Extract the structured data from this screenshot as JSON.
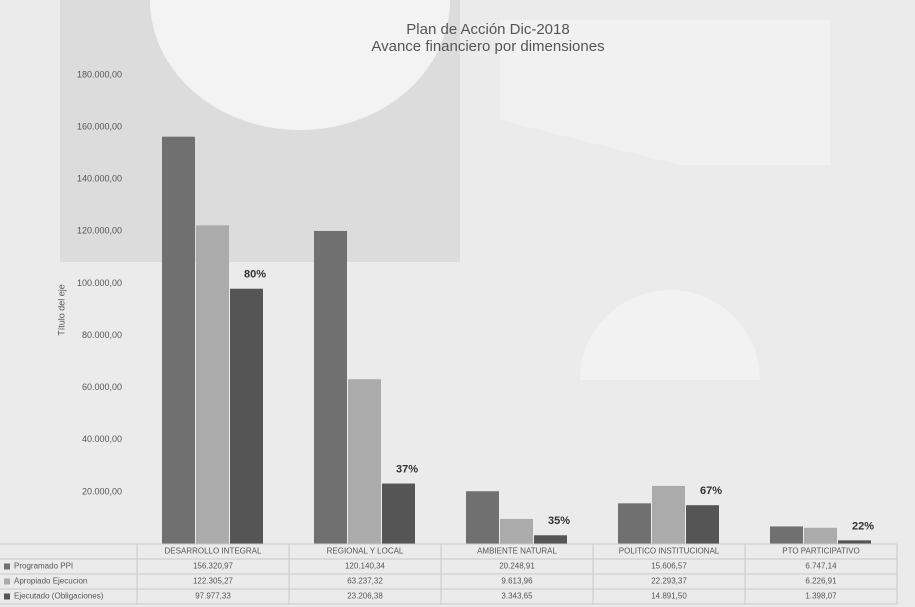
{
  "chart_data": {
    "type": "bar",
    "title": "Plan de Acción Dic-2018",
    "subtitle": "Avance financiero por dimensiones",
    "y_axis_label": "Título del eje",
    "categories": [
      "DESARROLLO INTEGRAL",
      "REGIONAL Y LOCAL",
      "AMBIENTE NATURAL",
      "POLITICO INSTITUCIONAL",
      "PTO PARTICIPATIVO"
    ],
    "series": [
      {
        "name": "Programado PPI",
        "color": "#707070",
        "values": [
          156320.97,
          120140.34,
          20248.91,
          15606.57,
          6747.14
        ],
        "value_labels": [
          "156.320,97",
          "120.140,34",
          "20.248,91",
          "15.606,57",
          "6.747,14"
        ]
      },
      {
        "name": "Apropiado Ejecucion",
        "color": "#ababab",
        "values": [
          122305.27,
          63237.32,
          9613.96,
          22293.37,
          6226.91
        ],
        "value_labels": [
          "122.305,27",
          "63.237,32",
          "9.613,96",
          "22.293,37",
          "6.226,91"
        ]
      },
      {
        "name": "Ejecutado (Obligaciones)",
        "color": "#555555",
        "values": [
          97977.33,
          23206.38,
          3343.65,
          14891.5,
          1398.07
        ],
        "value_labels": [
          "97.977,33",
          "23.206,38",
          "3.343,65",
          "14.891,50",
          "1.398,07"
        ]
      }
    ],
    "annotations": [
      "80%",
      "37%",
      "35%",
      "67%",
      "22%"
    ],
    "ylim": [
      0,
      180000
    ],
    "yticks": [
      {
        "value": 20000,
        "label": "20.000,00"
      },
      {
        "value": 40000,
        "label": "40.000,00"
      },
      {
        "value": 60000,
        "label": "60.000,00"
      },
      {
        "value": 80000,
        "label": "80.000,00"
      },
      {
        "value": 100000,
        "label": "100.000,00"
      },
      {
        "value": 120000,
        "label": "120.000,00"
      },
      {
        "value": 140000,
        "label": "140.000,00"
      },
      {
        "value": 160000,
        "label": "160.000,00"
      },
      {
        "value": 180000,
        "label": "180.000,00"
      }
    ],
    "grid": false
  }
}
